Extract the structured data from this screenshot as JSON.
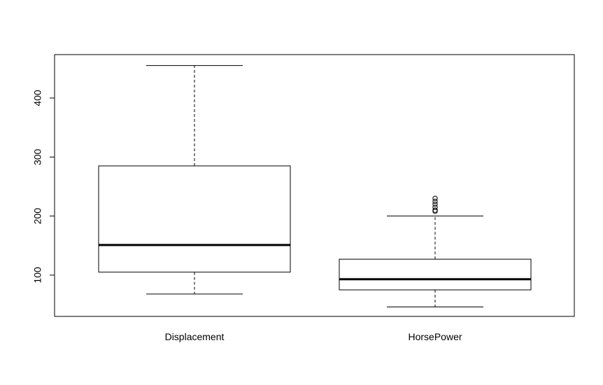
{
  "chart_data": {
    "type": "boxplot",
    "title": "",
    "xlabel": "",
    "ylabel": "",
    "ylim": [
      30,
      475
    ],
    "yticks": [
      100,
      200,
      300,
      400
    ],
    "ytick_labels": [
      "100",
      "200",
      "300",
      "400"
    ],
    "grid": false,
    "categories": [
      "Displacement",
      "HorsePower"
    ],
    "boxes": [
      {
        "label": "Displacement",
        "whisker_low": 68,
        "q1": 105,
        "median": 151,
        "q3": 285,
        "whisker_high": 455,
        "outliers": []
      },
      {
        "label": "HorsePower",
        "whisker_low": 46,
        "q1": 75,
        "median": 93,
        "q3": 127,
        "whisker_high": 200,
        "outliers": [
          208,
          210,
          215,
          220,
          225,
          230
        ]
      }
    ]
  }
}
